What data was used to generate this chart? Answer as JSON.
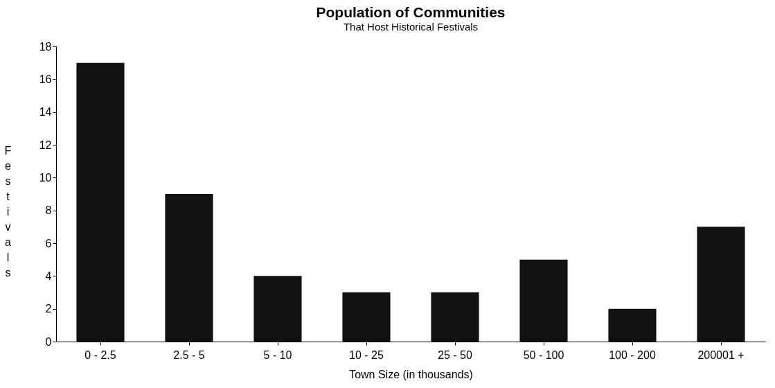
{
  "chart_data": {
    "type": "bar",
    "title": "Population of Communities",
    "subtitle": "That Host Historical Festivals",
    "xlabel": "Town Size (in thousands)",
    "ylabel": "Festivals",
    "categories": [
      "0 - 2.5",
      "2.5 - 5",
      "5 - 10",
      "10 - 25",
      "25 - 50",
      "50 - 100",
      "100 - 200",
      "200001 +"
    ],
    "values": [
      17,
      9,
      4,
      3,
      3,
      5,
      2,
      7
    ],
    "color": "#111111",
    "ylim": [
      0,
      18
    ],
    "yticks": [
      0,
      2,
      4,
      6,
      8,
      10,
      12,
      14,
      16,
      18
    ],
    "grid": false
  }
}
